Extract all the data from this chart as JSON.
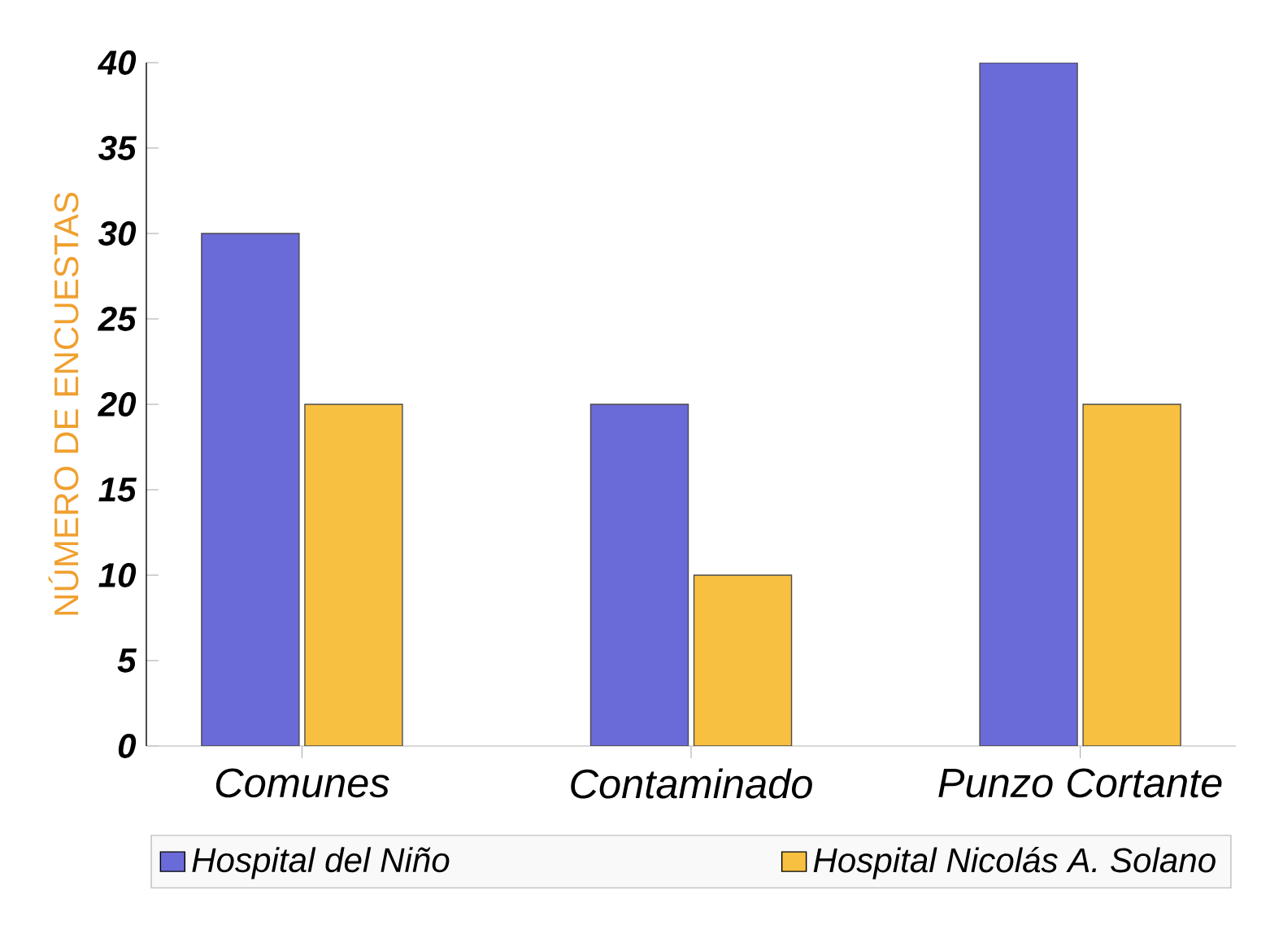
{
  "chart_data": {
    "type": "bar",
    "ylabel": "NÚMERO DE ENCUESTAS",
    "categories": [
      "Comunes",
      "Contaminado",
      "Punzo Cortante"
    ],
    "series": [
      {
        "name": "Hospital del Niño",
        "color": "#6a6ad8",
        "values": [
          30,
          20,
          40
        ]
      },
      {
        "name": "Hospital Nicolás A. Solano",
        "color": "#f8c040",
        "values": [
          20,
          10,
          20
        ]
      }
    ],
    "ylim": [
      0,
      40
    ],
    "yticks": [
      0,
      5,
      10,
      15,
      20,
      25,
      30,
      35,
      40
    ],
    "grid": false,
    "legend": "bottom"
  }
}
